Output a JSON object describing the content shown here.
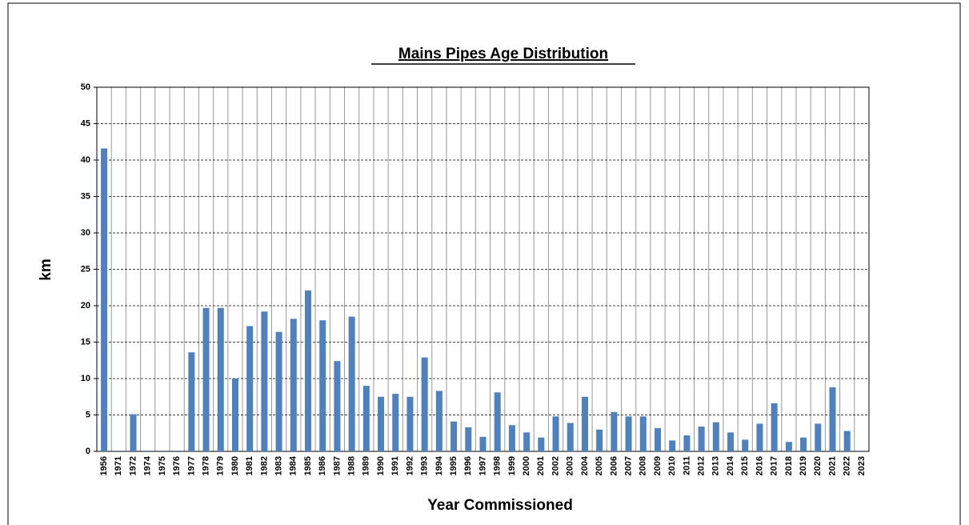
{
  "chart_data": {
    "type": "bar",
    "title": "Mains Pipes Age Distribution",
    "x_label": "Year Commissioned",
    "y_label": "km",
    "categories": [
      "1956",
      "1971",
      "1972",
      "1974",
      "1975",
      "1976",
      "1977",
      "1978",
      "1979",
      "1980",
      "1981",
      "1982",
      "1983",
      "1984",
      "1985",
      "1986",
      "1987",
      "1988",
      "1989",
      "1990",
      "1991",
      "1992",
      "1993",
      "1994",
      "1995",
      "1996",
      "1997",
      "1998",
      "1999",
      "2000",
      "2001",
      "2002",
      "2003",
      "2004",
      "2005",
      "2006",
      "2007",
      "2008",
      "2009",
      "2010",
      "2011",
      "2012",
      "2013",
      "2014",
      "2015",
      "2016",
      "2017",
      "2018",
      "2019",
      "2020",
      "2021",
      "2022",
      "2023"
    ],
    "values": [
      41.6,
      0.1,
      5.1,
      0.1,
      0.1,
      0.1,
      13.6,
      19.7,
      19.7,
      10.0,
      17.2,
      19.2,
      16.4,
      18.2,
      22.1,
      18.0,
      12.4,
      18.5,
      9.0,
      7.5,
      7.9,
      7.5,
      12.9,
      8.3,
      4.1,
      3.3,
      2.0,
      8.1,
      3.6,
      2.6,
      1.9,
      4.8,
      3.9,
      7.5,
      3.0,
      5.4,
      4.8,
      4.8,
      3.2,
      1.5,
      2.2,
      3.4,
      4.0,
      2.6,
      1.6,
      3.8,
      6.6,
      1.3,
      1.9,
      3.8,
      8.8,
      2.8,
      0.1
    ],
    "color": "#4f81bd",
    "ylim": [
      0,
      50
    ],
    "yticks": [
      0,
      5,
      10,
      15,
      20,
      25,
      30,
      35,
      40,
      45,
      50
    ],
    "grid": true
  }
}
